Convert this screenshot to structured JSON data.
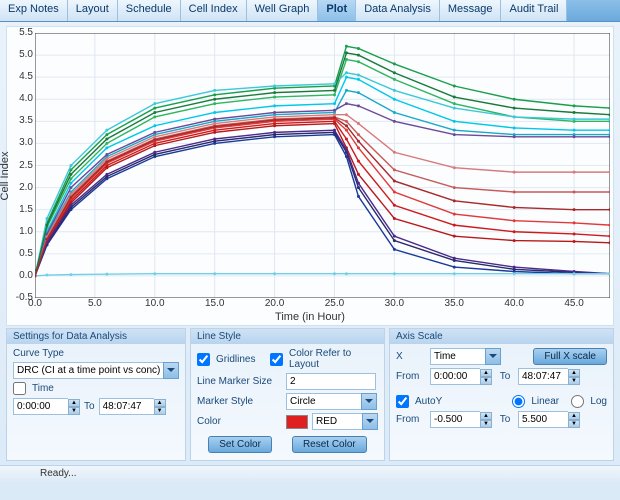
{
  "tabs": [
    "Exp Notes",
    "Layout",
    "Schedule",
    "Cell Index",
    "Well Graph",
    "Plot",
    "Data Analysis",
    "Message",
    "Audit Trail"
  ],
  "active_tab": 5,
  "chart": {
    "ylabel": "Cell Index",
    "xlabel": "Time (in Hour)",
    "xlim": [
      0,
      48
    ],
    "ylim": [
      -0.5,
      5.5
    ],
    "xticks": [
      0,
      5,
      10,
      15,
      20,
      25,
      30,
      35,
      40,
      45
    ],
    "yticks": [
      -0.5,
      0.0,
      0.5,
      1.0,
      1.5,
      2.0,
      2.5,
      3.0,
      3.5,
      4.0,
      4.5,
      5.0,
      5.5
    ],
    "grid_color": "#e0e8f0",
    "background": "#fdfeff",
    "series": [
      {
        "color": "#1a9e4a",
        "pts": [
          [
            0,
            0
          ],
          [
            1,
            1.2
          ],
          [
            3,
            2.4
          ],
          [
            6,
            3.2
          ],
          [
            10,
            3.8
          ],
          [
            15,
            4.1
          ],
          [
            20,
            4.25
          ],
          [
            25,
            4.3
          ],
          [
            26,
            5.2
          ],
          [
            27,
            5.15
          ],
          [
            30,
            4.8
          ],
          [
            35,
            4.3
          ],
          [
            40,
            4.0
          ],
          [
            45,
            3.85
          ],
          [
            48,
            3.8
          ]
        ]
      },
      {
        "color": "#2fb55e",
        "pts": [
          [
            0,
            0
          ],
          [
            1,
            1.1
          ],
          [
            3,
            2.2
          ],
          [
            6,
            3.0
          ],
          [
            10,
            3.6
          ],
          [
            15,
            3.9
          ],
          [
            20,
            4.05
          ],
          [
            25,
            4.1
          ],
          [
            26,
            4.9
          ],
          [
            27,
            4.85
          ],
          [
            30,
            4.45
          ],
          [
            35,
            3.9
          ],
          [
            40,
            3.6
          ],
          [
            45,
            3.5
          ],
          [
            48,
            3.5
          ]
        ]
      },
      {
        "color": "#3cc8d8",
        "pts": [
          [
            0,
            0
          ],
          [
            1,
            1.3
          ],
          [
            3,
            2.5
          ],
          [
            6,
            3.3
          ],
          [
            10,
            3.9
          ],
          [
            15,
            4.2
          ],
          [
            20,
            4.3
          ],
          [
            25,
            4.35
          ],
          [
            26,
            4.6
          ],
          [
            27,
            4.55
          ],
          [
            30,
            4.2
          ],
          [
            35,
            3.8
          ],
          [
            40,
            3.6
          ],
          [
            45,
            3.55
          ],
          [
            48,
            3.55
          ]
        ]
      },
      {
        "color": "#00c8e8",
        "pts": [
          [
            0,
            0
          ],
          [
            1,
            1.0
          ],
          [
            3,
            2.1
          ],
          [
            6,
            2.9
          ],
          [
            10,
            3.4
          ],
          [
            15,
            3.7
          ],
          [
            20,
            3.85
          ],
          [
            25,
            3.9
          ],
          [
            26,
            4.5
          ],
          [
            27,
            4.45
          ],
          [
            30,
            4.0
          ],
          [
            35,
            3.5
          ],
          [
            40,
            3.35
          ],
          [
            45,
            3.3
          ],
          [
            48,
            3.3
          ]
        ]
      },
      {
        "color": "#1aa8c8",
        "pts": [
          [
            0,
            0
          ],
          [
            1,
            0.9
          ],
          [
            3,
            1.9
          ],
          [
            6,
            2.7
          ],
          [
            10,
            3.2
          ],
          [
            15,
            3.5
          ],
          [
            20,
            3.65
          ],
          [
            25,
            3.7
          ],
          [
            26,
            4.2
          ],
          [
            27,
            4.15
          ],
          [
            30,
            3.7
          ],
          [
            35,
            3.3
          ],
          [
            40,
            3.2
          ],
          [
            45,
            3.2
          ],
          [
            48,
            3.2
          ]
        ]
      },
      {
        "color": "#6b4a9a",
        "pts": [
          [
            0,
            0
          ],
          [
            1,
            0.95
          ],
          [
            3,
            2.0
          ],
          [
            6,
            2.75
          ],
          [
            10,
            3.25
          ],
          [
            15,
            3.55
          ],
          [
            20,
            3.7
          ],
          [
            25,
            3.75
          ],
          [
            26,
            3.9
          ],
          [
            27,
            3.85
          ],
          [
            30,
            3.5
          ],
          [
            35,
            3.2
          ],
          [
            40,
            3.15
          ],
          [
            45,
            3.15
          ],
          [
            48,
            3.15
          ]
        ]
      },
      {
        "color": "#d01a1a",
        "pts": [
          [
            0,
            0
          ],
          [
            1,
            0.8
          ],
          [
            3,
            1.7
          ],
          [
            6,
            2.5
          ],
          [
            10,
            3.0
          ],
          [
            15,
            3.3
          ],
          [
            20,
            3.45
          ],
          [
            25,
            3.5
          ],
          [
            26,
            3.1
          ],
          [
            27,
            2.6
          ],
          [
            30,
            1.6
          ],
          [
            35,
            1.15
          ],
          [
            40,
            1.0
          ],
          [
            45,
            0.95
          ],
          [
            48,
            0.9
          ]
        ]
      },
      {
        "color": "#e03a3a",
        "pts": [
          [
            0,
            0
          ],
          [
            1,
            0.82
          ],
          [
            3,
            1.75
          ],
          [
            6,
            2.55
          ],
          [
            10,
            3.05
          ],
          [
            15,
            3.35
          ],
          [
            20,
            3.5
          ],
          [
            25,
            3.55
          ],
          [
            26,
            3.3
          ],
          [
            27,
            2.9
          ],
          [
            30,
            1.9
          ],
          [
            35,
            1.4
          ],
          [
            40,
            1.25
          ],
          [
            45,
            1.2
          ],
          [
            48,
            1.15
          ]
        ]
      },
      {
        "color": "#b81a1a",
        "pts": [
          [
            0,
            0
          ],
          [
            1,
            0.78
          ],
          [
            3,
            1.65
          ],
          [
            6,
            2.45
          ],
          [
            10,
            2.95
          ],
          [
            15,
            3.25
          ],
          [
            20,
            3.4
          ],
          [
            25,
            3.45
          ],
          [
            26,
            2.9
          ],
          [
            27,
            2.3
          ],
          [
            30,
            1.3
          ],
          [
            35,
            0.9
          ],
          [
            40,
            0.8
          ],
          [
            45,
            0.78
          ],
          [
            48,
            0.75
          ]
        ]
      },
      {
        "color": "#c85a5a",
        "pts": [
          [
            0,
            0
          ],
          [
            1,
            0.85
          ],
          [
            3,
            1.8
          ],
          [
            6,
            2.6
          ],
          [
            10,
            3.1
          ],
          [
            15,
            3.4
          ],
          [
            20,
            3.55
          ],
          [
            25,
            3.6
          ],
          [
            26,
            3.5
          ],
          [
            27,
            3.2
          ],
          [
            30,
            2.4
          ],
          [
            35,
            2.0
          ],
          [
            40,
            1.9
          ],
          [
            45,
            1.9
          ],
          [
            48,
            1.9
          ]
        ]
      },
      {
        "color": "#d87a7a",
        "pts": [
          [
            0,
            0
          ],
          [
            1,
            0.88
          ],
          [
            3,
            1.85
          ],
          [
            6,
            2.65
          ],
          [
            10,
            3.15
          ],
          [
            15,
            3.45
          ],
          [
            20,
            3.6
          ],
          [
            25,
            3.65
          ],
          [
            26,
            3.65
          ],
          [
            27,
            3.45
          ],
          [
            30,
            2.8
          ],
          [
            35,
            2.45
          ],
          [
            40,
            2.35
          ],
          [
            45,
            2.35
          ],
          [
            48,
            2.35
          ]
        ]
      },
      {
        "color": "#1a3a9a",
        "pts": [
          [
            0,
            0
          ],
          [
            1,
            0.7
          ],
          [
            3,
            1.5
          ],
          [
            6,
            2.2
          ],
          [
            10,
            2.7
          ],
          [
            15,
            3.0
          ],
          [
            20,
            3.15
          ],
          [
            25,
            3.2
          ],
          [
            26,
            2.7
          ],
          [
            27,
            1.8
          ],
          [
            30,
            0.6
          ],
          [
            35,
            0.2
          ],
          [
            40,
            0.1
          ],
          [
            45,
            0.05
          ],
          [
            48,
            0.05
          ]
        ]
      },
      {
        "color": "#2a2a6a",
        "pts": [
          [
            0,
            0
          ],
          [
            1,
            0.72
          ],
          [
            3,
            1.55
          ],
          [
            6,
            2.25
          ],
          [
            10,
            2.75
          ],
          [
            15,
            3.05
          ],
          [
            20,
            3.2
          ],
          [
            25,
            3.25
          ],
          [
            26,
            2.8
          ],
          [
            27,
            2.0
          ],
          [
            30,
            0.8
          ],
          [
            35,
            0.35
          ],
          [
            40,
            0.15
          ],
          [
            45,
            0.08
          ],
          [
            48,
            0.05
          ]
        ]
      },
      {
        "color": "#4a2a8a",
        "pts": [
          [
            0,
            0
          ],
          [
            1,
            0.75
          ],
          [
            3,
            1.6
          ],
          [
            6,
            2.3
          ],
          [
            10,
            2.8
          ],
          [
            15,
            3.1
          ],
          [
            20,
            3.25
          ],
          [
            25,
            3.3
          ],
          [
            26,
            2.85
          ],
          [
            27,
            2.1
          ],
          [
            30,
            0.9
          ],
          [
            35,
            0.4
          ],
          [
            40,
            0.2
          ],
          [
            45,
            0.1
          ],
          [
            48,
            0.05
          ]
        ]
      },
      {
        "color": "#70d0e8",
        "pts": [
          [
            0,
            0
          ],
          [
            1,
            0.02
          ],
          [
            3,
            0.03
          ],
          [
            6,
            0.04
          ],
          [
            10,
            0.05
          ],
          [
            15,
            0.05
          ],
          [
            20,
            0.05
          ],
          [
            25,
            0.05
          ],
          [
            26,
            0.05
          ],
          [
            30,
            0.05
          ],
          [
            35,
            0.05
          ],
          [
            40,
            0.05
          ],
          [
            45,
            0.05
          ],
          [
            48,
            0.05
          ]
        ]
      },
      {
        "color": "#1a7a3a",
        "pts": [
          [
            0,
            0
          ],
          [
            1,
            1.15
          ],
          [
            3,
            2.3
          ],
          [
            6,
            3.1
          ],
          [
            10,
            3.7
          ],
          [
            15,
            4.0
          ],
          [
            20,
            4.15
          ],
          [
            25,
            4.2
          ],
          [
            26,
            5.05
          ],
          [
            27,
            5.0
          ],
          [
            30,
            4.6
          ],
          [
            35,
            4.05
          ],
          [
            40,
            3.8
          ],
          [
            45,
            3.7
          ],
          [
            48,
            3.65
          ]
        ]
      },
      {
        "color": "#a82a2a",
        "pts": [
          [
            0,
            0
          ],
          [
            1,
            0.83
          ],
          [
            3,
            1.78
          ],
          [
            6,
            2.58
          ],
          [
            10,
            3.08
          ],
          [
            15,
            3.38
          ],
          [
            20,
            3.53
          ],
          [
            25,
            3.58
          ],
          [
            26,
            3.4
          ],
          [
            27,
            3.05
          ],
          [
            30,
            2.15
          ],
          [
            35,
            1.7
          ],
          [
            40,
            1.55
          ],
          [
            45,
            1.5
          ],
          [
            48,
            1.5
          ]
        ]
      }
    ]
  },
  "settings_panel": {
    "title": "Settings for Data Analysis",
    "curve_type_label": "Curve Type",
    "curve_type_value": "DRC (CI at a time point vs conc)",
    "time_checkbox": "Time",
    "time_from": "0:00:00",
    "to_label": "To",
    "time_to": "48:07:47"
  },
  "line_panel": {
    "title": "Line Style",
    "gridlines": "Gridlines",
    "color_layout": "Color Refer to Layout",
    "marker_size_label": "Line Marker Size",
    "marker_size_value": "2",
    "marker_style_label": "Marker Style",
    "marker_style_value": "Circle",
    "color_label": "Color",
    "color_name": "RED",
    "color_hex": "#e02020",
    "set_color": "Set Color",
    "reset_color": "Reset Color"
  },
  "axis_panel": {
    "title": "Axis Scale",
    "x_label": "X",
    "x_value": "Time",
    "full_x": "Full X scale",
    "from_label": "From",
    "x_from": "0:00:00",
    "to_label": "To",
    "x_to": "48:07:47",
    "autoy": "AutoY",
    "linear": "Linear",
    "log": "Log",
    "y_from": "-0.500",
    "y_to": "5.500"
  },
  "status": "Ready..."
}
